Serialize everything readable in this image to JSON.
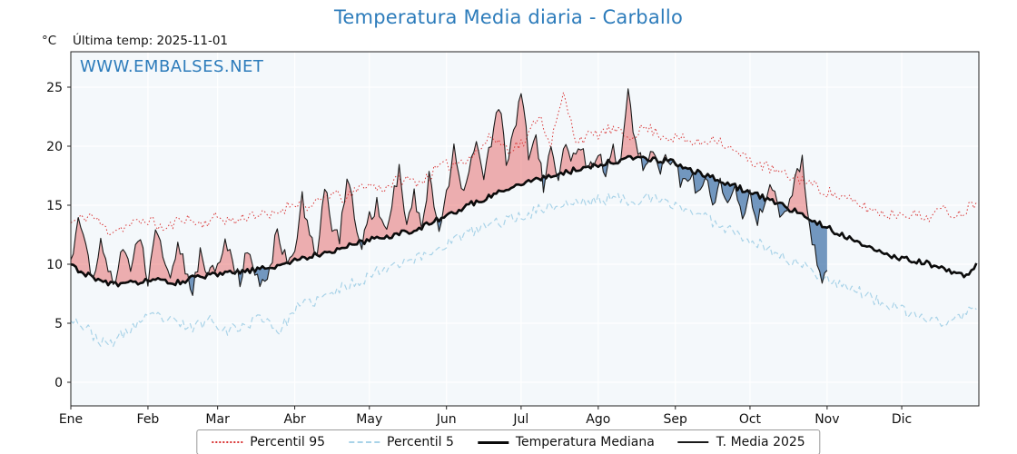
{
  "header": {
    "title": "Temperatura Media diaria - Carballo",
    "y_unit": "°C",
    "last_temp_label": "Última temp: 2025-11-01",
    "watermark": "WWW.EMBALSES.NET"
  },
  "colors": {
    "title": "#2d7cbb",
    "watermark": "#2d7cbb",
    "plot_bg": "#f4f8fb",
    "grid": "#ffffff",
    "frame": "#222222",
    "fill_above": "rgba(225,70,70,0.42)",
    "fill_below": "rgba(58,110,165,0.70)"
  },
  "legend": {
    "items": [
      {
        "label": "Percentil 95"
      },
      {
        "label": "Percentil 5"
      },
      {
        "label": "Temperatura Mediana"
      },
      {
        "label": "T. Media 2025"
      }
    ]
  },
  "chart_data": {
    "type": "line",
    "title": "Temperatura Media diaria - Carballo",
    "ylabel": "°C",
    "annotation": "Última temp: 2025-11-01",
    "ylim": [
      -2,
      28
    ],
    "yticks": [
      0,
      5,
      10,
      15,
      20,
      25
    ],
    "x_tick_labels": [
      "Ene",
      "Feb",
      "Mar",
      "Abr",
      "May",
      "Jun",
      "Jul",
      "Ago",
      "Sep",
      "Oct",
      "Nov",
      "Dic"
    ],
    "month_start_days": [
      0,
      31,
      59,
      90,
      120,
      151,
      181,
      212,
      243,
      273,
      304,
      334
    ],
    "days_total": 365,
    "grid": true,
    "legend_position": "bottom",
    "fills": {
      "between": [
        "T. Media 2025",
        "Temperatura Mediana"
      ],
      "above": "red",
      "below": "blue"
    },
    "series": [
      {
        "name": "Percentil 95",
        "style": "dotted",
        "color": "#d93535",
        "width": 1,
        "jitter": 0.5,
        "seed": 11,
        "anchors": [
          [
            0,
            13.5
          ],
          [
            8,
            14.2
          ],
          [
            15,
            12.8
          ],
          [
            22,
            13.2
          ],
          [
            31,
            13.8
          ],
          [
            38,
            12.9
          ],
          [
            45,
            14.0
          ],
          [
            52,
            13.4
          ],
          [
            59,
            14.0
          ],
          [
            66,
            13.6
          ],
          [
            73,
            14.3
          ],
          [
            80,
            14.0
          ],
          [
            90,
            15.3
          ],
          [
            97,
            14.8
          ],
          [
            104,
            16.0
          ],
          [
            111,
            15.5
          ],
          [
            118,
            16.8
          ],
          [
            125,
            16.4
          ],
          [
            132,
            17.2
          ],
          [
            141,
            17.0
          ],
          [
            148,
            18.2
          ],
          [
            155,
            18.6
          ],
          [
            162,
            19.3
          ],
          [
            169,
            20.8
          ],
          [
            176,
            19.8
          ],
          [
            183,
            20.4
          ],
          [
            188,
            22.8
          ],
          [
            193,
            20.2
          ],
          [
            198,
            24.3
          ],
          [
            203,
            20.6
          ],
          [
            210,
            20.9
          ],
          [
            217,
            21.4
          ],
          [
            224,
            20.8
          ],
          [
            231,
            21.6
          ],
          [
            238,
            20.9
          ],
          [
            245,
            20.6
          ],
          [
            252,
            20.2
          ],
          [
            259,
            20.8
          ],
          [
            266,
            19.6
          ],
          [
            273,
            18.8
          ],
          [
            280,
            18.2
          ],
          [
            287,
            17.5
          ],
          [
            294,
            17.2
          ],
          [
            301,
            16.4
          ],
          [
            308,
            15.8
          ],
          [
            315,
            15.2
          ],
          [
            322,
            14.6
          ],
          [
            329,
            14.2
          ],
          [
            336,
            14.4
          ],
          [
            343,
            13.9
          ],
          [
            350,
            14.6
          ],
          [
            357,
            14.2
          ],
          [
            364,
            15.4
          ]
        ]
      },
      {
        "name": "Percentil 5",
        "style": "dashed",
        "color": "#a9d3e8",
        "width": 1.2,
        "jitter": 0.5,
        "seed": 23,
        "anchors": [
          [
            0,
            5.6
          ],
          [
            7,
            4.4
          ],
          [
            14,
            3.1
          ],
          [
            21,
            4.0
          ],
          [
            28,
            5.2
          ],
          [
            35,
            5.6
          ],
          [
            42,
            5.0
          ],
          [
            49,
            4.6
          ],
          [
            56,
            5.4
          ],
          [
            63,
            4.4
          ],
          [
            70,
            4.8
          ],
          [
            77,
            5.6
          ],
          [
            84,
            4.3
          ],
          [
            90,
            6.2
          ],
          [
            97,
            6.8
          ],
          [
            104,
            7.4
          ],
          [
            111,
            8.2
          ],
          [
            118,
            8.8
          ],
          [
            125,
            9.6
          ],
          [
            132,
            10.2
          ],
          [
            141,
            10.6
          ],
          [
            148,
            11.4
          ],
          [
            155,
            12.2
          ],
          [
            162,
            12.8
          ],
          [
            169,
            13.4
          ],
          [
            176,
            13.8
          ],
          [
            183,
            14.2
          ],
          [
            190,
            14.8
          ],
          [
            197,
            15.0
          ],
          [
            204,
            15.2
          ],
          [
            211,
            15.4
          ],
          [
            218,
            15.6
          ],
          [
            225,
            15.4
          ],
          [
            232,
            15.6
          ],
          [
            239,
            15.2
          ],
          [
            246,
            14.8
          ],
          [
            253,
            14.2
          ],
          [
            260,
            13.4
          ],
          [
            267,
            12.8
          ],
          [
            274,
            12.0
          ],
          [
            281,
            11.2
          ],
          [
            288,
            10.4
          ],
          [
            295,
            9.8
          ],
          [
            302,
            9.0
          ],
          [
            309,
            8.4
          ],
          [
            316,
            7.8
          ],
          [
            323,
            7.0
          ],
          [
            330,
            6.4
          ],
          [
            337,
            5.8
          ],
          [
            344,
            5.4
          ],
          [
            351,
            5.0
          ],
          [
            358,
            5.6
          ],
          [
            364,
            6.4
          ]
        ]
      },
      {
        "name": "Temperatura Mediana",
        "style": "solid",
        "color": "#0b0b0b",
        "width": 2.6,
        "jitter": 0.25,
        "seed": 31,
        "anchors": [
          [
            0,
            9.9
          ],
          [
            10,
            8.7
          ],
          [
            20,
            8.2
          ],
          [
            31,
            8.7
          ],
          [
            41,
            8.4
          ],
          [
            51,
            8.9
          ],
          [
            59,
            9.1
          ],
          [
            70,
            9.4
          ],
          [
            80,
            9.7
          ],
          [
            90,
            10.3
          ],
          [
            100,
            10.9
          ],
          [
            110,
            11.4
          ],
          [
            120,
            12.1
          ],
          [
            130,
            12.5
          ],
          [
            141,
            13.1
          ],
          [
            151,
            14.1
          ],
          [
            161,
            15.1
          ],
          [
            171,
            16.0
          ],
          [
            181,
            16.9
          ],
          [
            191,
            17.4
          ],
          [
            201,
            17.9
          ],
          [
            212,
            18.4
          ],
          [
            222,
            18.9
          ],
          [
            232,
            19.0
          ],
          [
            243,
            18.6
          ],
          [
            253,
            17.7
          ],
          [
            263,
            16.9
          ],
          [
            273,
            16.1
          ],
          [
            283,
            15.3
          ],
          [
            293,
            14.3
          ],
          [
            304,
            13.1
          ],
          [
            314,
            12.1
          ],
          [
            324,
            11.1
          ],
          [
            334,
            10.5
          ],
          [
            344,
            10.1
          ],
          [
            354,
            9.3
          ],
          [
            360,
            9.0
          ],
          [
            364,
            10.0
          ]
        ]
      },
      {
        "name": "T. Media 2025",
        "style": "solid",
        "color": "#1a1a1a",
        "width": 1.1,
        "jitter": 0.7,
        "seed": 47,
        "anchors": [
          [
            0,
            10.2
          ],
          [
            3,
            13.9
          ],
          [
            6,
            11.5
          ],
          [
            9,
            8.8
          ],
          [
            12,
            12.4
          ],
          [
            15,
            9.4
          ],
          [
            18,
            8.2
          ],
          [
            21,
            11.8
          ],
          [
            24,
            9.0
          ],
          [
            27,
            12.6
          ],
          [
            31,
            8.8
          ],
          [
            34,
            13.6
          ],
          [
            37,
            11.0
          ],
          [
            40,
            8.6
          ],
          [
            43,
            12.2
          ],
          [
            46,
            9.4
          ],
          [
            49,
            7.6
          ],
          [
            52,
            11.2
          ],
          [
            55,
            9.0
          ],
          [
            59,
            9.6
          ],
          [
            62,
            12.6
          ],
          [
            65,
            10.2
          ],
          [
            68,
            8.4
          ],
          [
            71,
            11.2
          ],
          [
            74,
            9.2
          ],
          [
            77,
            8.6
          ],
          [
            80,
            9.2
          ],
          [
            83,
            13.2
          ],
          [
            86,
            10.6
          ],
          [
            90,
            10.8
          ],
          [
            93,
            15.6
          ],
          [
            96,
            12.2
          ],
          [
            99,
            11.2
          ],
          [
            102,
            16.8
          ],
          [
            105,
            13.4
          ],
          [
            108,
            12.2
          ],
          [
            111,
            17.6
          ],
          [
            114,
            14.2
          ],
          [
            117,
            11.6
          ],
          [
            120,
            13.8
          ],
          [
            123,
            15.2
          ],
          [
            126,
            12.6
          ],
          [
            129,
            14.8
          ],
          [
            132,
            18.4
          ],
          [
            135,
            13.2
          ],
          [
            138,
            15.8
          ],
          [
            141,
            13.2
          ],
          [
            144,
            17.2
          ],
          [
            148,
            12.6
          ],
          [
            151,
            15.8
          ],
          [
            154,
            19.6
          ],
          [
            157,
            16.2
          ],
          [
            160,
            17.8
          ],
          [
            163,
            21.0
          ],
          [
            166,
            17.4
          ],
          [
            169,
            20.4
          ],
          [
            172,
            23.8
          ],
          [
            175,
            18.6
          ],
          [
            178,
            21.2
          ],
          [
            181,
            24.4
          ],
          [
            184,
            19.4
          ],
          [
            187,
            20.8
          ],
          [
            190,
            16.6
          ],
          [
            193,
            19.8
          ],
          [
            196,
            16.9
          ],
          [
            199,
            20.6
          ],
          [
            202,
            18.8
          ],
          [
            205,
            19.6
          ],
          [
            208,
            18.4
          ],
          [
            212,
            19.2
          ],
          [
            215,
            18.0
          ],
          [
            218,
            19.8
          ],
          [
            221,
            18.4
          ],
          [
            224,
            24.6
          ],
          [
            227,
            20.2
          ],
          [
            230,
            18.6
          ],
          [
            233,
            19.4
          ],
          [
            236,
            18.0
          ],
          [
            239,
            18.8
          ],
          [
            243,
            18.4
          ],
          [
            246,
            16.6
          ],
          [
            249,
            17.8
          ],
          [
            252,
            15.8
          ],
          [
            255,
            17.2
          ],
          [
            258,
            15.2
          ],
          [
            261,
            16.8
          ],
          [
            264,
            14.8
          ],
          [
            267,
            16.2
          ],
          [
            270,
            14.4
          ],
          [
            273,
            16.2
          ],
          [
            276,
            13.8
          ],
          [
            279,
            15.4
          ],
          [
            282,
            16.6
          ],
          [
            285,
            13.6
          ],
          [
            288,
            14.8
          ],
          [
            291,
            17.0
          ],
          [
            294,
            18.8
          ],
          [
            297,
            13.4
          ],
          [
            300,
            10.2
          ],
          [
            302,
            8.8
          ],
          [
            304,
            9.6
          ]
        ]
      }
    ]
  }
}
